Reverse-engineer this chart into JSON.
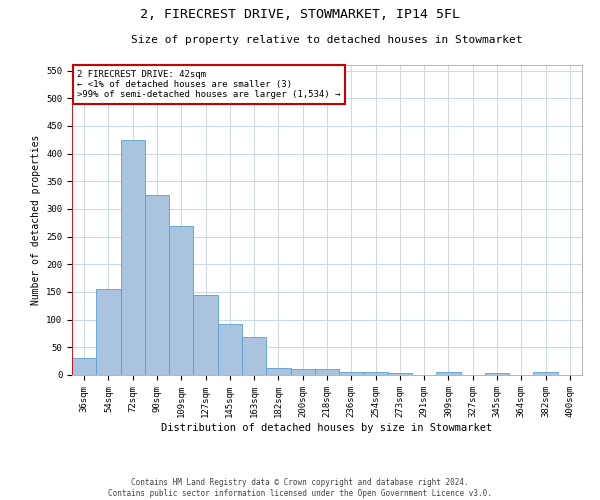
{
  "title1": "2, FIRECREST DRIVE, STOWMARKET, IP14 5FL",
  "title2": "Size of property relative to detached houses in Stowmarket",
  "xlabel": "Distribution of detached houses by size in Stowmarket",
  "ylabel": "Number of detached properties",
  "categories": [
    "36sqm",
    "54sqm",
    "72sqm",
    "90sqm",
    "109sqm",
    "127sqm",
    "145sqm",
    "163sqm",
    "182sqm",
    "200sqm",
    "218sqm",
    "236sqm",
    "254sqm",
    "273sqm",
    "291sqm",
    "309sqm",
    "327sqm",
    "345sqm",
    "364sqm",
    "382sqm",
    "400sqm"
  ],
  "values": [
    30,
    155,
    425,
    325,
    270,
    145,
    92,
    68,
    13,
    10,
    10,
    5,
    5,
    3,
    0,
    5,
    0,
    3,
    0,
    5,
    0
  ],
  "bar_color": "#aac4e0",
  "bar_edge_color": "#5a9fd4",
  "annotation_box_color": "#ffffff",
  "annotation_box_edge": "#cc0000",
  "annotation_line1": "2 FIRECREST DRIVE: 42sqm",
  "annotation_line2": "← <1% of detached houses are smaller (3)",
  "annotation_line3": ">99% of semi-detached houses are larger (1,534) →",
  "ylim": [
    0,
    560
  ],
  "yticks": [
    0,
    50,
    100,
    150,
    200,
    250,
    300,
    350,
    400,
    450,
    500,
    550
  ],
  "footer1": "Contains HM Land Registry data © Crown copyright and database right 2024.",
  "footer2": "Contains public sector information licensed under the Open Government Licence v3.0.",
  "background_color": "#ffffff",
  "grid_color": "#c8d8e8",
  "title1_fontsize": 9.5,
  "title2_fontsize": 8.0,
  "xlabel_fontsize": 7.5,
  "ylabel_fontsize": 7.0,
  "tick_fontsize": 6.5,
  "ann_fontsize": 6.5,
  "footer_fontsize": 5.5
}
